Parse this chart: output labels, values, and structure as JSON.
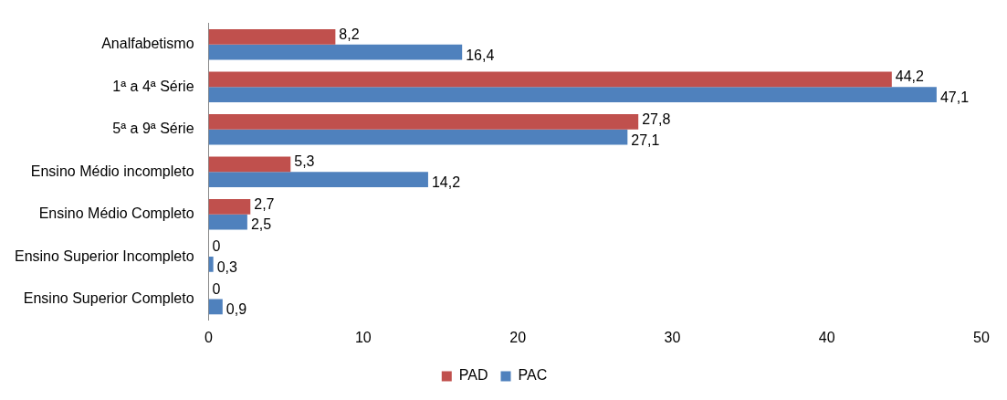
{
  "chart_data": {
    "type": "bar",
    "orientation": "horizontal",
    "categories": [
      "Analfabetismo",
      "1ª a 4ª Série",
      "5ª a 9ª Série",
      "Ensino Médio incompleto",
      "Ensino Médio Completo",
      "Ensino Superior Incompleto",
      "Ensino Superior Completo"
    ],
    "series": [
      {
        "name": "PAD",
        "color": "#c0504d",
        "values": [
          8.2,
          44.2,
          27.8,
          5.3,
          2.7,
          0,
          0
        ],
        "value_labels": [
          "8,2",
          "44,2",
          "27,8",
          "5,3",
          "2,7",
          "0",
          "0"
        ]
      },
      {
        "name": "PAC",
        "color": "#4f81bd",
        "values": [
          16.4,
          47.1,
          27.1,
          14.2,
          2.5,
          0.3,
          0.9
        ],
        "value_labels": [
          "16,4",
          "47,1",
          "27,1",
          "14,2",
          "2,5",
          "0,3",
          "0,9"
        ]
      }
    ],
    "xlim": [
      0,
      50
    ],
    "xticks": [
      0,
      10,
      20,
      30,
      40,
      50
    ],
    "grid": false,
    "legend": "bottom"
  }
}
